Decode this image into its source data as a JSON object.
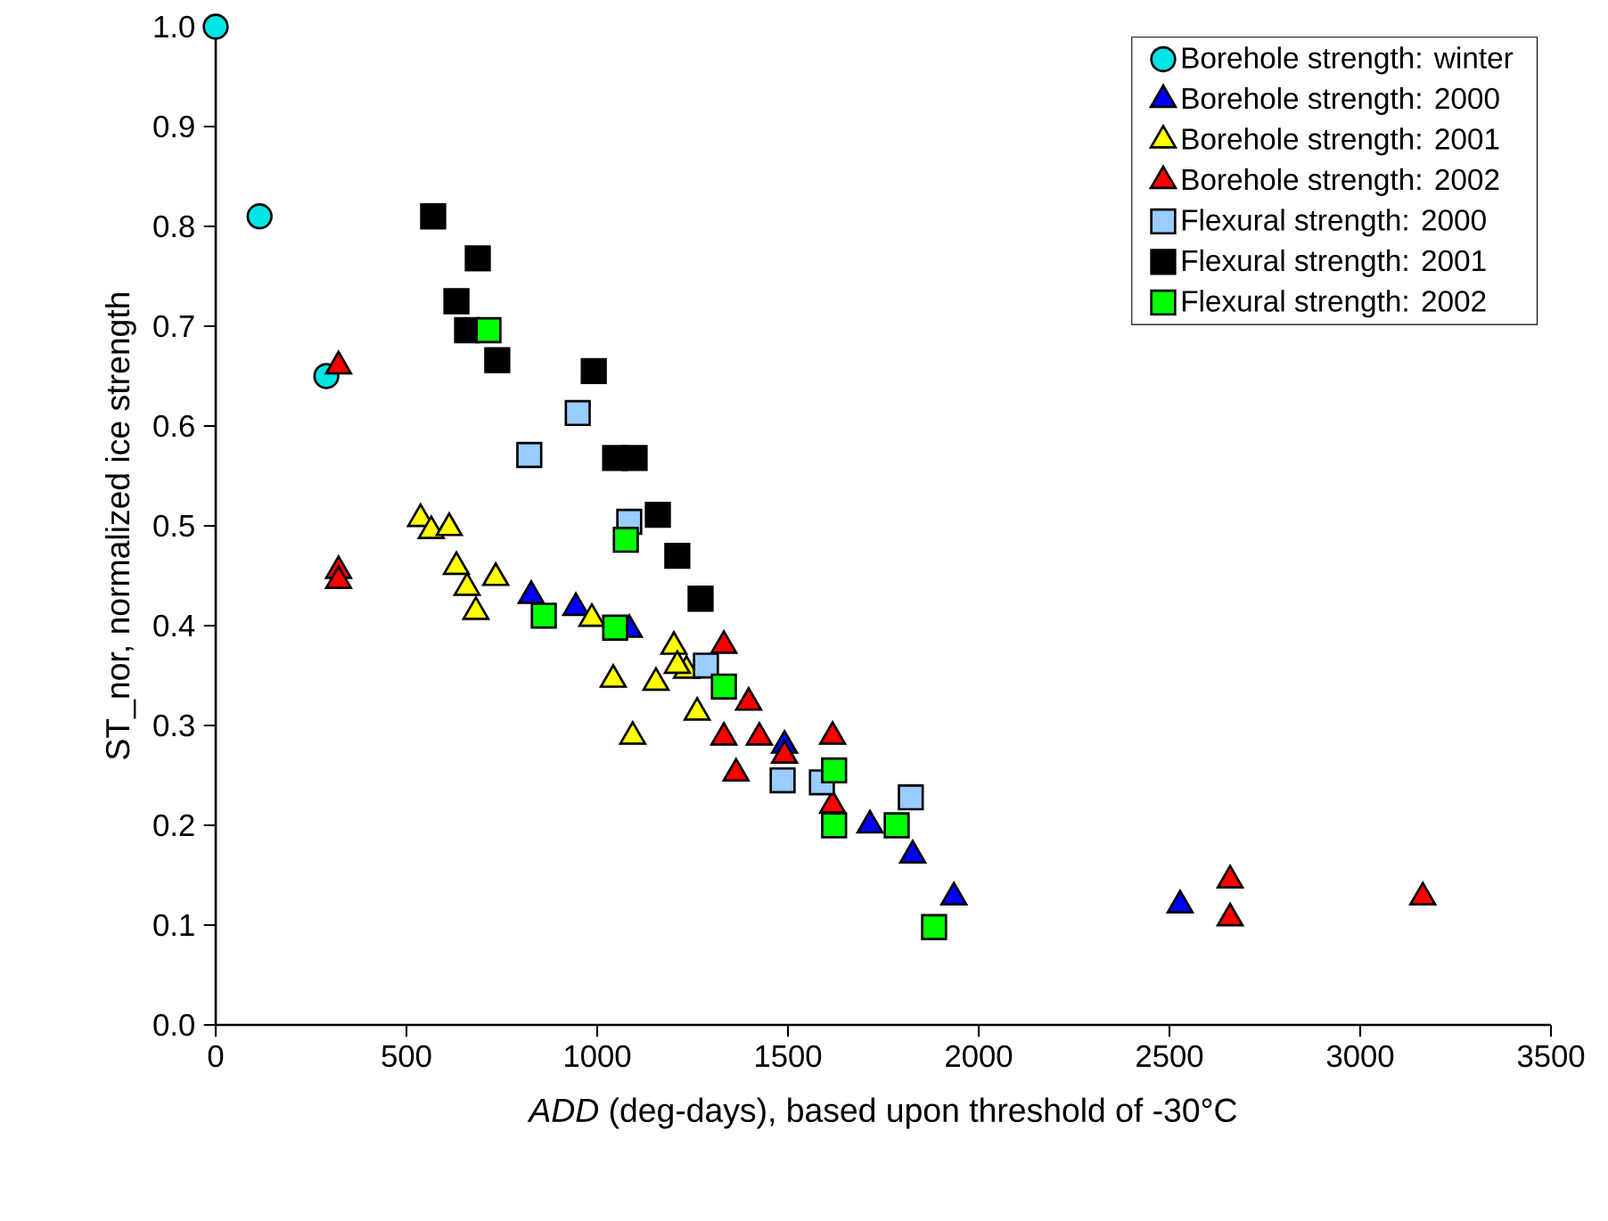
{
  "chart_data": {
    "type": "scatter",
    "xlabel": "*ADD* (deg-days), based upon threshold of -30°C",
    "ylabel": "ST_nor, normalized ice strength",
    "xlim": [
      0,
      3500
    ],
    "xticks": [
      0,
      500,
      1000,
      1500,
      2000,
      2500,
      3000,
      3500
    ],
    "ylim": [
      0,
      1
    ],
    "yticks": [
      {
        "value": 0,
        "label": "0.0"
      },
      0.1,
      0.2,
      0.3,
      0.4,
      0.5,
      0.6,
      0.7,
      0.8,
      0.9,
      {
        "value": 1,
        "label": "1.0"
      }
    ],
    "legend": "top right",
    "grid": false,
    "series": [
      {
        "name": "Borehole strength: winter",
        "color": "#00e5e5",
        "marker": "circle",
        "x": [
          0,
          115,
          290
        ],
        "values": [
          1.0,
          0.81,
          0.65
        ]
      },
      {
        "name": "Borehole strength: 2000",
        "color": "#0000ff",
        "marker": "triangle",
        "x": [
          827,
          944,
          1084,
          1280,
          1491,
          1715,
          1827,
          1935,
          2528
        ],
        "values": [
          0.43,
          0.418,
          0.396,
          null,
          0.28,
          0.2,
          0.17,
          0.128,
          0.12
        ]
      },
      {
        "name": "Borehole strength: 2001",
        "color": "#ffff00",
        "marker": "triangle",
        "x": [
          537,
          565,
          612,
          631,
          659,
          734,
          682,
          986,
          1201,
          1234,
          1042,
          1154,
          1262,
          1093,
          1210
        ],
        "values": [
          0.507,
          0.495,
          0.498,
          0.459,
          0.438,
          0.448,
          0.414,
          0.407,
          0.379,
          0.355,
          0.346,
          0.343,
          0.313,
          0.289,
          0.36
        ]
      },
      {
        "name": "Borehole strength: 2002",
        "color": "#ff0000",
        "marker": "triangle",
        "x": [
          322,
          322,
          322,
          1332,
          1397,
          1332,
          1425,
          1491,
          1364,
          1617,
          1617,
          2659,
          2659,
          3164
        ],
        "values": [
          0.66,
          0.455,
          0.445,
          0.38,
          0.323,
          0.288,
          0.288,
          0.27,
          0.252,
          0.289,
          0.22,
          0.145,
          0.107,
          0.128
        ]
      },
      {
        "name": "Flexural strength: 2000",
        "color": "#99ccff",
        "marker": "square",
        "x": [
          822,
          949,
          1084,
          1285,
          1486,
          1589,
          1822
        ],
        "values": [
          0.571,
          0.613,
          0.504,
          0.36,
          0.245,
          0.243,
          0.228
        ]
      },
      {
        "name": "Flexural strength: 2001",
        "color": "#000000",
        "marker": "square",
        "x": [
          570,
          687,
          631,
          659,
          738,
          991,
          1047,
          1098,
          1159,
          1210,
          1271
        ],
        "values": [
          0.81,
          0.768,
          0.725,
          0.696,
          0.666,
          0.655,
          0.568,
          0.568,
          0.511,
          0.47,
          0.427
        ]
      },
      {
        "name": "Flexural strength: 2002",
        "color": "#00ff00",
        "marker": "square",
        "x": [
          715,
          1075,
          860,
          1047,
          1332,
          1621,
          1621,
          1785,
          1883
        ],
        "values": [
          0.696,
          0.486,
          0.41,
          0.398,
          0.339,
          0.255,
          0.2,
          0.2,
          0.098
        ]
      }
    ]
  }
}
